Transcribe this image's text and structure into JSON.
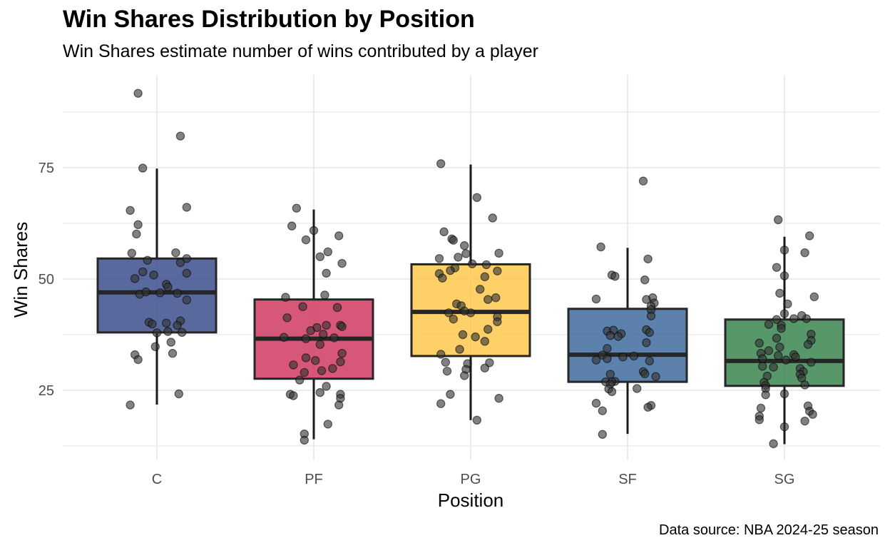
{
  "chart_data": {
    "type": "boxplot",
    "title": "Win Shares Distribution by Position",
    "subtitle": "Win Shares estimate number of wins contributed by a player",
    "xlabel": "Position",
    "ylabel": "Win Shares",
    "caption": "Data source: NBA 2024-25 season",
    "ylim": [
      9.5,
      97
    ],
    "y_ticks": [
      25,
      50,
      75
    ],
    "grid": true,
    "legend": "none",
    "point_color": "#333333",
    "categories": [
      "C",
      "PF",
      "PG",
      "SF",
      "SG"
    ],
    "series": [
      {
        "category": "C",
        "color": "#3c4f8c",
        "box": {
          "whisker_low": 21.8,
          "q1": 38.0,
          "median": 47.0,
          "q3": 54.6,
          "whisker_high": 74.8
        },
        "points": [
          {
            "x": -0.12,
            "y": 91.7
          },
          {
            "x": 0.15,
            "y": 82.1
          },
          {
            "x": -0.09,
            "y": 74.9
          },
          {
            "x": 0.19,
            "y": 66.1
          },
          {
            "x": -0.17,
            "y": 65.4
          },
          {
            "x": -0.12,
            "y": 62.2
          },
          {
            "x": -0.13,
            "y": 60.1
          },
          {
            "x": -0.16,
            "y": 55.8
          },
          {
            "x": 0.12,
            "y": 55.9
          },
          {
            "x": 0.19,
            "y": 54.6
          },
          {
            "x": -0.06,
            "y": 54.2
          },
          {
            "x": 0.15,
            "y": 53.7
          },
          {
            "x": -0.09,
            "y": 51.6
          },
          {
            "x": 0.19,
            "y": 51.3
          },
          {
            "x": -0.02,
            "y": 50.9
          },
          {
            "x": -0.14,
            "y": 50.1
          },
          {
            "x": 0.06,
            "y": 48.8
          },
          {
            "x": 0.07,
            "y": 48.2
          },
          {
            "x": -0.11,
            "y": 46.6
          },
          {
            "x": -0.07,
            "y": 47.1
          },
          {
            "x": 0.02,
            "y": 46.9
          },
          {
            "x": 0.13,
            "y": 46.8
          },
          {
            "x": 0.19,
            "y": 45.3
          },
          {
            "x": -0.05,
            "y": 40.3
          },
          {
            "x": 0.15,
            "y": 40.6
          },
          {
            "x": 0.06,
            "y": 40.1
          },
          {
            "x": -0.03,
            "y": 39.9
          },
          {
            "x": 0.13,
            "y": 39.6
          },
          {
            "x": 0.07,
            "y": 38.2
          },
          {
            "x": 0.16,
            "y": 38.0
          },
          {
            "x": 0.0,
            "y": 37.9
          },
          {
            "x": 0.09,
            "y": 35.8
          },
          {
            "x": -0.01,
            "y": 34.8
          },
          {
            "x": 0.1,
            "y": 33.3
          },
          {
            "x": -0.14,
            "y": 33.0
          },
          {
            "x": -0.12,
            "y": 31.9
          },
          {
            "x": 0.14,
            "y": 24.2
          },
          {
            "x": -0.17,
            "y": 21.7
          }
        ]
      },
      {
        "category": "PF",
        "color": "#cf3a60",
        "box": {
          "whisker_low": 14.0,
          "q1": 27.6,
          "median": 36.6,
          "q3": 45.4,
          "whisker_high": 65.6
        },
        "points": [
          {
            "x": -0.11,
            "y": 65.9
          },
          {
            "x": -0.14,
            "y": 61.9
          },
          {
            "x": 0.0,
            "y": 60.9
          },
          {
            "x": 0.16,
            "y": 59.7
          },
          {
            "x": -0.05,
            "y": 58.8
          },
          {
            "x": 0.09,
            "y": 56.1
          },
          {
            "x": 0.04,
            "y": 55.0
          },
          {
            "x": 0.18,
            "y": 53.5
          },
          {
            "x": 0.08,
            "y": 51.3
          },
          {
            "x": 0.07,
            "y": 46.4
          },
          {
            "x": -0.18,
            "y": 45.9
          },
          {
            "x": -0.07,
            "y": 43.8
          },
          {
            "x": 0.15,
            "y": 43.6
          },
          {
            "x": -0.17,
            "y": 41.3
          },
          {
            "x": 0.17,
            "y": 39.6
          },
          {
            "x": 0.08,
            "y": 39.6
          },
          {
            "x": 0.18,
            "y": 39.3
          },
          {
            "x": 0.02,
            "y": 39.1
          },
          {
            "x": -0.02,
            "y": 38.4
          },
          {
            "x": 0.06,
            "y": 37.6
          },
          {
            "x": -0.19,
            "y": 36.9
          },
          {
            "x": 0.13,
            "y": 36.8
          },
          {
            "x": -0.05,
            "y": 36.6
          },
          {
            "x": 0.04,
            "y": 35.3
          },
          {
            "x": 0.18,
            "y": 33.3
          },
          {
            "x": -0.05,
            "y": 32.3
          },
          {
            "x": 0.01,
            "y": 31.7
          },
          {
            "x": 0.17,
            "y": 31.4
          },
          {
            "x": -0.13,
            "y": 30.7
          },
          {
            "x": 0.12,
            "y": 29.9
          },
          {
            "x": 0.05,
            "y": 29.4
          },
          {
            "x": -0.06,
            "y": 29.0
          },
          {
            "x": -0.09,
            "y": 27.3
          },
          {
            "x": 0.08,
            "y": 25.9
          },
          {
            "x": 0.04,
            "y": 24.5
          },
          {
            "x": 0.17,
            "y": 24.1
          },
          {
            "x": -0.15,
            "y": 24.1
          },
          {
            "x": -0.13,
            "y": 23.8
          },
          {
            "x": 0.17,
            "y": 23.2
          },
          {
            "x": 0.16,
            "y": 21.7
          },
          {
            "x": 0.09,
            "y": 17.4
          },
          {
            "x": -0.06,
            "y": 15.2
          },
          {
            "x": -0.06,
            "y": 13.8
          }
        ]
      },
      {
        "category": "PG",
        "color": "#fec84d",
        "box": {
          "whisker_low": 18.3,
          "q1": 32.7,
          "median": 42.6,
          "q3": 53.3,
          "whisker_high": 75.7
        },
        "points": [
          {
            "x": -0.19,
            "y": 75.9
          },
          {
            "x": 0.04,
            "y": 68.3
          },
          {
            "x": 0.14,
            "y": 63.7
          },
          {
            "x": -0.17,
            "y": 60.6
          },
          {
            "x": -0.12,
            "y": 59.0
          },
          {
            "x": -0.11,
            "y": 58.7
          },
          {
            "x": -0.04,
            "y": 57.5
          },
          {
            "x": -0.03,
            "y": 55.7
          },
          {
            "x": 0.18,
            "y": 55.8
          },
          {
            "x": -0.2,
            "y": 54.6
          },
          {
            "x": -0.08,
            "y": 54.9
          },
          {
            "x": 0.01,
            "y": 53.4
          },
          {
            "x": 0.1,
            "y": 53.2
          },
          {
            "x": -0.1,
            "y": 52.5
          },
          {
            "x": -0.13,
            "y": 51.9
          },
          {
            "x": -0.2,
            "y": 51.2
          },
          {
            "x": 0.17,
            "y": 51.8
          },
          {
            "x": 0.09,
            "y": 50.5
          },
          {
            "x": -0.18,
            "y": 50.2
          },
          {
            "x": 0.06,
            "y": 47.7
          },
          {
            "x": 0.16,
            "y": 45.8
          },
          {
            "x": 0.11,
            "y": 45.4
          },
          {
            "x": -0.09,
            "y": 44.4
          },
          {
            "x": -0.06,
            "y": 44.0
          },
          {
            "x": 0.0,
            "y": 42.4
          },
          {
            "x": -0.04,
            "y": 42.8
          },
          {
            "x": -0.14,
            "y": 42.4
          },
          {
            "x": 0.17,
            "y": 41.5
          },
          {
            "x": 0.17,
            "y": 40.4
          },
          {
            "x": -0.11,
            "y": 41.0
          },
          {
            "x": 0.11,
            "y": 38.7
          },
          {
            "x": -0.05,
            "y": 37.5
          },
          {
            "x": 0.03,
            "y": 37.0
          },
          {
            "x": 0.09,
            "y": 36.0
          },
          {
            "x": -0.07,
            "y": 34.2
          },
          {
            "x": -0.19,
            "y": 33.1
          },
          {
            "x": -0.16,
            "y": 31.3
          },
          {
            "x": 0.12,
            "y": 31.2
          },
          {
            "x": -0.02,
            "y": 31.0
          },
          {
            "x": 0.09,
            "y": 30.0
          },
          {
            "x": -0.03,
            "y": 29.7
          },
          {
            "x": -0.15,
            "y": 29.3
          },
          {
            "x": -0.04,
            "y": 28.3
          },
          {
            "x": -0.13,
            "y": 24.1
          },
          {
            "x": 0.18,
            "y": 23.2
          },
          {
            "x": -0.19,
            "y": 22.0
          },
          {
            "x": 0.04,
            "y": 18.3
          }
        ]
      },
      {
        "category": "SF",
        "color": "#3f6b9e",
        "box": {
          "whisker_low": 15.2,
          "q1": 26.9,
          "median": 33.0,
          "q3": 43.3,
          "whisker_high": 57.0
        },
        "points": [
          {
            "x": 0.1,
            "y": 72.0
          },
          {
            "x": -0.17,
            "y": 57.2
          },
          {
            "x": 0.13,
            "y": 54.5
          },
          {
            "x": -0.1,
            "y": 50.9
          },
          {
            "x": -0.08,
            "y": 50.6
          },
          {
            "x": 0.11,
            "y": 49.8
          },
          {
            "x": -0.2,
            "y": 45.5
          },
          {
            "x": 0.16,
            "y": 45.8
          },
          {
            "x": 0.12,
            "y": 45.4
          },
          {
            "x": 0.17,
            "y": 44.6
          },
          {
            "x": 0.15,
            "y": 43.9
          },
          {
            "x": 0.15,
            "y": 43.1
          },
          {
            "x": 0.15,
            "y": 41.7
          },
          {
            "x": 0.12,
            "y": 38.6
          },
          {
            "x": -0.13,
            "y": 38.3
          },
          {
            "x": -0.09,
            "y": 38.5
          },
          {
            "x": 0.14,
            "y": 38.0
          },
          {
            "x": -0.04,
            "y": 37.7
          },
          {
            "x": -0.06,
            "y": 37.1
          },
          {
            "x": -0.11,
            "y": 37.3
          },
          {
            "x": 0.12,
            "y": 35.7
          },
          {
            "x": -0.13,
            "y": 34.4
          },
          {
            "x": -0.16,
            "y": 32.9
          },
          {
            "x": -0.03,
            "y": 32.5
          },
          {
            "x": 0.04,
            "y": 32.7
          },
          {
            "x": -0.13,
            "y": 32.1
          },
          {
            "x": -0.2,
            "y": 31.8
          },
          {
            "x": 0.14,
            "y": 31.6
          },
          {
            "x": 0.1,
            "y": 29.2
          },
          {
            "x": 0.11,
            "y": 28.7
          },
          {
            "x": -0.11,
            "y": 28.6
          },
          {
            "x": 0.18,
            "y": 28.1
          },
          {
            "x": -0.08,
            "y": 27.0
          },
          {
            "x": -0.1,
            "y": 26.9
          },
          {
            "x": -0.14,
            "y": 26.9
          },
          {
            "x": -0.11,
            "y": 26.4
          },
          {
            "x": -0.12,
            "y": 25.3
          },
          {
            "x": 0.06,
            "y": 25.4
          },
          {
            "x": -0.1,
            "y": 24.7
          },
          {
            "x": -0.2,
            "y": 22.1
          },
          {
            "x": 0.15,
            "y": 21.6
          },
          {
            "x": 0.13,
            "y": 21.2
          },
          {
            "x": -0.16,
            "y": 20.4
          },
          {
            "x": -0.16,
            "y": 15.1
          }
        ]
      },
      {
        "category": "SG",
        "color": "#3b8550",
        "box": {
          "whisker_low": 12.9,
          "q1": 26.0,
          "median": 31.6,
          "q3": 40.9,
          "whisker_high": 59.5
        },
        "points": [
          {
            "x": -0.04,
            "y": 63.3
          },
          {
            "x": 0.16,
            "y": 59.7
          },
          {
            "x": 0.0,
            "y": 56.5
          },
          {
            "x": 0.13,
            "y": 55.9
          },
          {
            "x": -0.05,
            "y": 52.6
          },
          {
            "x": 0.0,
            "y": 50.7
          },
          {
            "x": 0.19,
            "y": 46.0
          },
          {
            "x": -0.03,
            "y": 46.8
          },
          {
            "x": 0.02,
            "y": 44.4
          },
          {
            "x": 0.0,
            "y": 42.2
          },
          {
            "x": 0.14,
            "y": 41.1
          },
          {
            "x": 0.11,
            "y": 41.8
          },
          {
            "x": 0.06,
            "y": 41.1
          },
          {
            "x": -0.05,
            "y": 40.9
          },
          {
            "x": -0.1,
            "y": 39.8
          },
          {
            "x": -0.02,
            "y": 39.6
          },
          {
            "x": -0.02,
            "y": 38.9
          },
          {
            "x": 0.17,
            "y": 37.6
          },
          {
            "x": -0.05,
            "y": 36.7
          },
          {
            "x": 0.17,
            "y": 36.2
          },
          {
            "x": -0.16,
            "y": 35.6
          },
          {
            "x": 0.15,
            "y": 35.3
          },
          {
            "x": -0.03,
            "y": 34.7
          },
          {
            "x": -0.1,
            "y": 33.9
          },
          {
            "x": -0.15,
            "y": 33.3
          },
          {
            "x": 0.06,
            "y": 33.0
          },
          {
            "x": -0.04,
            "y": 32.8
          },
          {
            "x": 0.07,
            "y": 32.5
          },
          {
            "x": -0.14,
            "y": 32.1
          },
          {
            "x": 0.01,
            "y": 31.8
          },
          {
            "x": 0.17,
            "y": 31.3
          },
          {
            "x": -0.07,
            "y": 30.2
          },
          {
            "x": -0.14,
            "y": 30.4
          },
          {
            "x": 0.1,
            "y": 29.9
          },
          {
            "x": 0.12,
            "y": 29.2
          },
          {
            "x": 0.1,
            "y": 28.6
          },
          {
            "x": -0.11,
            "y": 28.2
          },
          {
            "x": 0.11,
            "y": 27.8
          },
          {
            "x": -0.13,
            "y": 26.8
          },
          {
            "x": -0.12,
            "y": 26.1
          },
          {
            "x": 0.13,
            "y": 26.2
          },
          {
            "x": -0.12,
            "y": 25.4
          },
          {
            "x": 0.0,
            "y": 24.2
          },
          {
            "x": -0.12,
            "y": 24.0
          },
          {
            "x": 0.15,
            "y": 21.5
          },
          {
            "x": -0.15,
            "y": 21.0
          },
          {
            "x": 0.16,
            "y": 20.3
          },
          {
            "x": 0.18,
            "y": 19.6
          },
          {
            "x": -0.16,
            "y": 19.2
          },
          {
            "x": 0.13,
            "y": 18.1
          },
          {
            "x": -0.16,
            "y": 18.4
          },
          {
            "x": 0.0,
            "y": 16.8
          },
          {
            "x": -0.07,
            "y": 13.0
          }
        ]
      }
    ]
  }
}
